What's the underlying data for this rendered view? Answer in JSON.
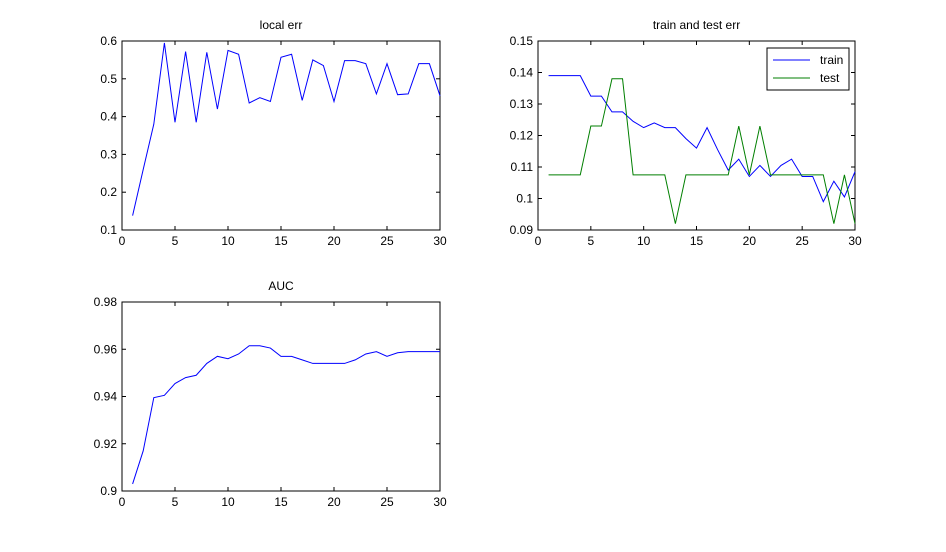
{
  "chart_data": [
    {
      "type": "line",
      "title": "local err",
      "xlabel": "",
      "ylabel": "",
      "xlim": [
        0,
        30
      ],
      "ylim": [
        0.1,
        0.6
      ],
      "xticks": [
        0,
        5,
        10,
        15,
        20,
        25,
        30
      ],
      "yticks": [
        0.1,
        0.2,
        0.3,
        0.4,
        0.5,
        0.6
      ],
      "xtick_labels": [
        "0",
        "5",
        "10",
        "15",
        "20",
        "25",
        "30"
      ],
      "ytick_labels": [
        "0.1",
        "0.2",
        "0.3",
        "0.4",
        "0.5",
        "0.6"
      ],
      "grid": false,
      "legend": "none",
      "x": [
        1,
        2,
        3,
        4,
        5,
        6,
        7,
        8,
        9,
        10,
        11,
        12,
        13,
        14,
        15,
        16,
        17,
        18,
        19,
        20,
        21,
        22,
        23,
        24,
        25,
        26,
        27,
        28,
        29,
        30
      ],
      "series": [
        {
          "color": "#0000ff",
          "values": [
            0.138,
            0.26,
            0.38,
            0.595,
            0.385,
            0.572,
            0.385,
            0.57,
            0.42,
            0.575,
            0.565,
            0.436,
            0.45,
            0.44,
            0.557,
            0.565,
            0.443,
            0.55,
            0.535,
            0.44,
            0.548,
            0.548,
            0.54,
            0.46,
            0.54,
            0.458,
            0.46,
            0.54,
            0.54,
            0.455
          ]
        }
      ]
    },
    {
      "type": "line",
      "title": "train and test err",
      "xlabel": "",
      "ylabel": "",
      "xlim": [
        0,
        30
      ],
      "ylim": [
        0.09,
        0.15
      ],
      "xticks": [
        0,
        5,
        10,
        15,
        20,
        25,
        30
      ],
      "yticks": [
        0.09,
        0.1,
        0.11,
        0.12,
        0.13,
        0.14,
        0.15
      ],
      "xtick_labels": [
        "0",
        "5",
        "10",
        "15",
        "20",
        "25",
        "30"
      ],
      "ytick_labels": [
        "0.09",
        "0.1",
        "0.11",
        "0.12",
        "0.13",
        "0.14",
        "0.15"
      ],
      "grid": false,
      "legend": "top-right",
      "x": [
        1,
        2,
        3,
        4,
        5,
        6,
        7,
        8,
        9,
        10,
        11,
        12,
        13,
        14,
        15,
        16,
        17,
        18,
        19,
        20,
        21,
        22,
        23,
        24,
        25,
        26,
        27,
        28,
        29,
        30
      ],
      "series": [
        {
          "name": "train",
          "color": "#0000ff",
          "values": [
            0.139,
            0.139,
            0.139,
            0.139,
            0.1325,
            0.1325,
            0.1275,
            0.1275,
            0.1245,
            0.1225,
            0.124,
            0.1225,
            0.1225,
            0.119,
            0.116,
            0.1225,
            0.1155,
            0.109,
            0.1125,
            0.107,
            0.1105,
            0.107,
            0.1105,
            0.1125,
            0.107,
            0.107,
            0.099,
            0.1055,
            0.1005,
            0.1085
          ]
        },
        {
          "name": "test",
          "color": "#007f00",
          "values": [
            0.1075,
            0.1075,
            0.1075,
            0.1075,
            0.123,
            0.123,
            0.138,
            0.138,
            0.1075,
            0.1075,
            0.1075,
            0.1075,
            0.092,
            0.1075,
            0.1075,
            0.1075,
            0.1075,
            0.1075,
            0.123,
            0.1075,
            0.123,
            0.1075,
            0.1075,
            0.1075,
            0.1075,
            0.1075,
            0.1075,
            0.092,
            0.1075,
            0.092
          ]
        }
      ]
    },
    {
      "type": "line",
      "title": "AUC",
      "xlabel": "",
      "ylabel": "",
      "xlim": [
        0,
        30
      ],
      "ylim": [
        0.9,
        0.98
      ],
      "xticks": [
        0,
        5,
        10,
        15,
        20,
        25,
        30
      ],
      "yticks": [
        0.9,
        0.92,
        0.94,
        0.96,
        0.98
      ],
      "xtick_labels": [
        "0",
        "5",
        "10",
        "15",
        "20",
        "25",
        "30"
      ],
      "ytick_labels": [
        "0.9",
        "0.92",
        "0.94",
        "0.96",
        "0.98"
      ],
      "grid": false,
      "legend": "none",
      "x": [
        1,
        2,
        3,
        4,
        5,
        6,
        7,
        8,
        9,
        10,
        11,
        12,
        13,
        14,
        15,
        16,
        17,
        18,
        19,
        20,
        21,
        22,
        23,
        24,
        25,
        26,
        27,
        28,
        29,
        30
      ],
      "series": [
        {
          "color": "#0000ff",
          "values": [
            0.903,
            0.917,
            0.9395,
            0.9405,
            0.9455,
            0.948,
            0.949,
            0.954,
            0.957,
            0.956,
            0.958,
            0.9615,
            0.9615,
            0.9605,
            0.957,
            0.957,
            0.9555,
            0.954,
            0.954,
            0.954,
            0.954,
            0.9555,
            0.958,
            0.959,
            0.957,
            0.9585,
            0.959,
            0.959,
            0.959,
            0.959
          ]
        }
      ]
    }
  ]
}
